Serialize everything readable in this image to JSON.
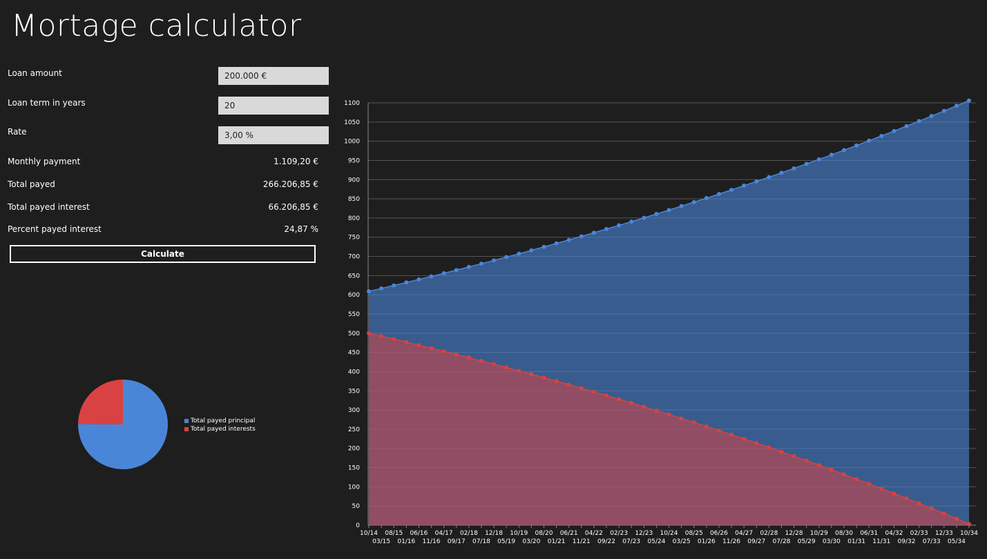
{
  "app": {
    "title": "Mortage calculator"
  },
  "form": {
    "loan_amount_label": "Loan amount",
    "loan_amount_value": "200.000 €",
    "loan_term_label": "Loan term in years",
    "loan_term_value": "20",
    "rate_label": "Rate",
    "rate_value": "3,00 %"
  },
  "results": {
    "monthly_payment_label": "Monthly payment",
    "monthly_payment_value": "1.109,20 €",
    "total_payed_label": "Total payed",
    "total_payed_value": "266.206,85 €",
    "total_interest_label": "Total payed interest",
    "total_interest_value": "66.206,85 €",
    "percent_interest_label": "Percent payed interest",
    "percent_interest_value": "24,87 %"
  },
  "actions": {
    "calculate_label": "Calculate"
  },
  "colors": {
    "principal": "#4a86d8",
    "interest": "#d94242",
    "background": "#1e1e1e"
  },
  "chart_data": [
    {
      "type": "pie",
      "title": "",
      "slices": [
        {
          "name": "Total payed principal",
          "value": 200000.0
        },
        {
          "name": "Total payed interests",
          "value": 66206.85
        }
      ],
      "legend": "right"
    },
    {
      "type": "area",
      "title": "",
      "ylim": [
        0,
        1100
      ],
      "yticks": [
        0,
        50,
        100,
        150,
        200,
        250,
        300,
        350,
        400,
        450,
        500,
        550,
        600,
        650,
        700,
        750,
        800,
        850,
        900,
        950,
        1000,
        1050,
        1100
      ],
      "grid": true,
      "x_tick_labels_top": [
        "10/14",
        "08/15",
        "06/16",
        "04/17",
        "02/18",
        "12/18",
        "10/19",
        "08/20",
        "06/21",
        "04/22",
        "02/23",
        "12/23",
        "10/24",
        "08/25",
        "06/26",
        "04/27",
        "02/28",
        "12/28",
        "10/29",
        "08/30",
        "06/31",
        "04/32",
        "02/33",
        "12/33",
        "10/34"
      ],
      "x_tick_labels_bottom": [
        "03/15",
        "01/16",
        "11/16",
        "09/17",
        "07/18",
        "05/19",
        "03/20",
        "01/21",
        "11/21",
        "09/22",
        "07/23",
        "05/24",
        "03/25",
        "01/26",
        "11/26",
        "09/27",
        "07/28",
        "05/29",
        "03/30",
        "01/31",
        "11/31",
        "09/32",
        "07/33",
        "05/34"
      ],
      "points_per_series": 49,
      "series": [
        {
          "name": "",
          "color": "#4a86d8",
          "start": 609,
          "end": 1106
        },
        {
          "name": "",
          "color": "#d94242",
          "start": 500,
          "end": 3
        }
      ]
    }
  ]
}
